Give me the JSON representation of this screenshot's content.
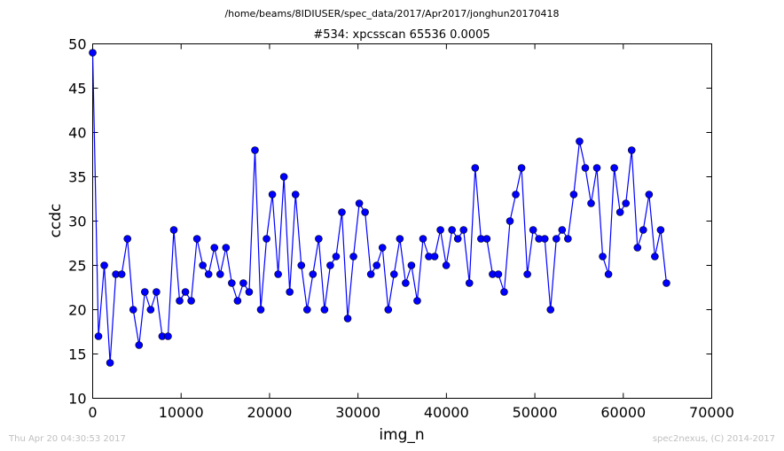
{
  "header": {
    "path": "/home/beams/8IDIUSER/spec_data/2017/Apr2017/jonghun20170418"
  },
  "footer": {
    "timestamp": "Thu Apr 20 04:30:53 2017",
    "credit": "spec2nexus, (C) 2014-2017"
  },
  "colors": {
    "series": "#0000ff",
    "marker_edge": "#000000",
    "footer_text": "#bfbfbf"
  },
  "chart_data": {
    "type": "line",
    "title": "#534: xpcsscan 65536 0.0005",
    "xlabel": "img_n",
    "ylabel": "ccdc",
    "xlim": [
      0,
      70000
    ],
    "ylim": [
      10,
      50
    ],
    "xticks": [
      0,
      10000,
      20000,
      30000,
      40000,
      50000,
      60000,
      70000
    ],
    "yticks": [
      10,
      15,
      20,
      25,
      30,
      35,
      40,
      45,
      50
    ],
    "grid": false,
    "legend": false,
    "markers": "circle",
    "series": [
      {
        "x": [
          0,
          655,
          1311,
          1966,
          2621,
          3277,
          3932,
          4587,
          5243,
          5898,
          6554,
          7209,
          7864,
          8520,
          9175,
          9830,
          10486,
          11141,
          11796,
          12452,
          13107,
          13763,
          14418,
          15073,
          15729,
          16384,
          17039,
          17695,
          18350,
          19005,
          19661,
          20316,
          20972,
          21627,
          22282,
          22938,
          23593,
          24248,
          24904,
          25559,
          26214,
          26870,
          27525,
          28180,
          28836,
          29491,
          30147,
          30802,
          31457,
          32113,
          32768,
          33423,
          34079,
          34734,
          35389,
          36045,
          36700,
          37356,
          38011,
          38666,
          39322,
          39977,
          40632,
          41288,
          41943,
          42598,
          43254,
          43909,
          44565,
          45220,
          45875,
          46531,
          47186,
          47841,
          48497,
          49152,
          49807,
          50463,
          51118,
          51773,
          52429,
          53084,
          53740,
          54395,
          55050,
          55706,
          56361,
          57016,
          57672,
          58327,
          58982,
          59638,
          60293,
          60949,
          61604,
          62259,
          62915,
          63570,
          64225,
          64881
        ],
        "y": [
          49,
          17,
          25,
          14,
          24,
          24,
          28,
          20,
          16,
          22,
          20,
          22,
          17,
          17,
          29,
          21,
          22,
          21,
          28,
          25,
          24,
          27,
          24,
          27,
          23,
          21,
          23,
          22,
          38,
          20,
          28,
          33,
          24,
          35,
          22,
          33,
          25,
          20,
          24,
          28,
          20,
          25,
          26,
          31,
          19,
          26,
          32,
          31,
          24,
          25,
          27,
          20,
          24,
          28,
          23,
          25,
          21,
          28,
          26,
          26,
          29,
          25,
          29,
          28,
          29,
          23,
          36,
          28,
          28,
          24,
          24,
          22,
          30,
          33,
          36,
          24,
          29,
          28,
          28,
          20,
          28,
          29,
          28,
          33,
          39,
          36,
          32,
          36,
          26,
          24,
          36,
          31,
          32,
          38,
          27,
          29,
          33,
          26,
          29,
          23
        ]
      }
    ]
  }
}
